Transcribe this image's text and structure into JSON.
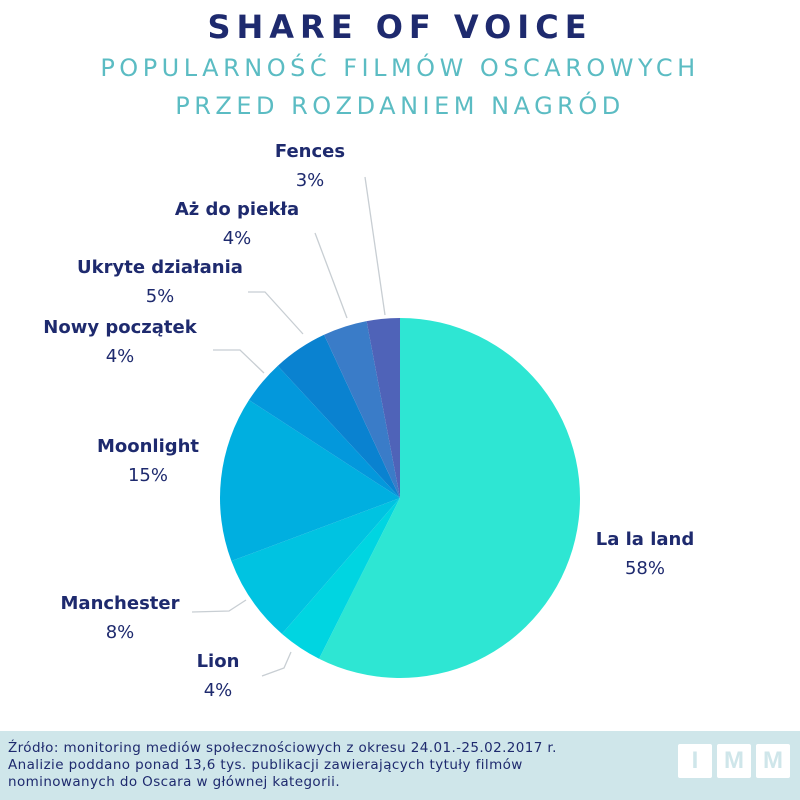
{
  "header": {
    "title": "SHARE OF VOICE",
    "subtitle_line1": "POPULARNOŚĆ FILMÓW OSCAROWYCH",
    "subtitle_line2": "PRZED ROZDANIEM NAGRÓD"
  },
  "chart_data": {
    "type": "pie",
    "title": "SHARE OF VOICE",
    "subtitle": "POPULARNOŚĆ FILMÓW OSCAROWYCH PRZED ROZDANIEM NAGRÓD",
    "slices": [
      {
        "label": "La la land",
        "value": 58,
        "display": "58%",
        "color": "#2ee6d3"
      },
      {
        "label": "Lion",
        "value": 4,
        "display": "4%",
        "color": "#00d5e1"
      },
      {
        "label": "Manchester",
        "value": 8,
        "display": "8%",
        "color": "#00c3e1"
      },
      {
        "label": "Moonlight",
        "value": 15,
        "display": "15%",
        "color": "#00afe0"
      },
      {
        "label": "Nowy początek",
        "value": 4,
        "display": "4%",
        "color": "#0398dc"
      },
      {
        "label": "Ukryte działania",
        "value": 5,
        "display": "5%",
        "color": "#0a82d0"
      },
      {
        "label": "Aż do piekła",
        "value": 4,
        "display": "4%",
        "color": "#3a7cc8"
      },
      {
        "label": "Fences",
        "value": 3,
        "display": "3%",
        "color": "#4f63b8"
      }
    ]
  },
  "footer": {
    "line1": "Źródło: monitoring mediów społecznościowych z okresu 24.01.-25.02.2017 r.",
    "line2": "Analizie poddano ponad 13,6 tys. publikacji zawierających tytuły filmów",
    "line3": "nominowanych do Oscara w głównej kategorii.",
    "logo_letters": [
      "I",
      "M",
      "M"
    ]
  }
}
